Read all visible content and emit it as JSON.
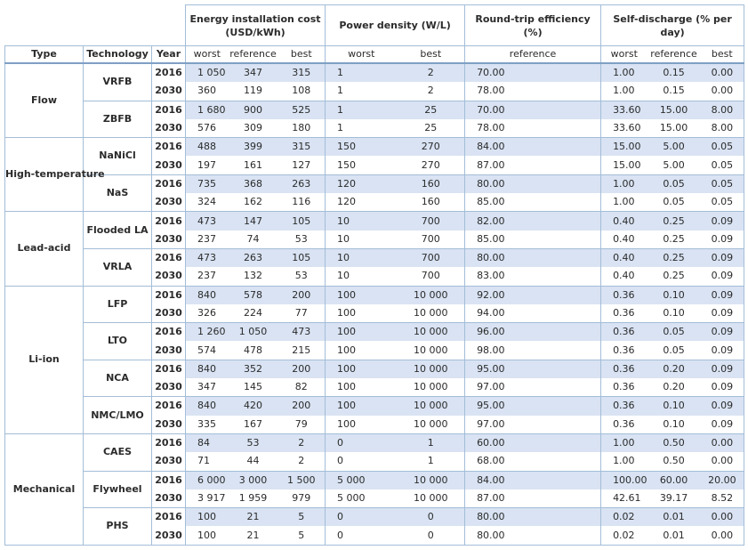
{
  "header": {
    "groups": [
      "Energy installation cost (USD/kWh)",
      "Power density (W/L)",
      "Round-trip efficiency (%)",
      "Self-discharge (% per day)"
    ],
    "columns": {
      "type": "Type",
      "technology": "Technology",
      "year": "Year",
      "cost_worst": "worst",
      "cost_reference": "reference",
      "cost_best": "best",
      "power_worst": "worst",
      "power_best": "best",
      "efficiency_reference": "reference",
      "sd_worst": "worst",
      "sd_reference": "reference",
      "sd_best": "best"
    }
  },
  "types": [
    {
      "name": "Flow",
      "technologies": [
        {
          "name": "VRFB",
          "rows": [
            {
              "year": "2016",
              "values": [
                "1 050",
                "347",
                "315",
                "1",
                "2",
                "70.00",
                "1.00",
                "0.15",
                "0.00"
              ]
            },
            {
              "year": "2030",
              "values": [
                "360",
                "119",
                "108",
                "1",
                "2",
                "78.00",
                "1.00",
                "0.15",
                "0.00"
              ]
            }
          ]
        },
        {
          "name": "ZBFB",
          "rows": [
            {
              "year": "2016",
              "values": [
                "1 680",
                "900",
                "525",
                "1",
                "25",
                "70.00",
                "33.60",
                "15.00",
                "8.00"
              ]
            },
            {
              "year": "2030",
              "values": [
                "576",
                "309",
                "180",
                "1",
                "25",
                "78.00",
                "33.60",
                "15.00",
                "8.00"
              ]
            }
          ]
        }
      ]
    },
    {
      "name": "High-temperature",
      "technologies": [
        {
          "name": "NaNiCl",
          "rows": [
            {
              "year": "2016",
              "values": [
                "488",
                "399",
                "315",
                "150",
                "270",
                "84.00",
                "15.00",
                "5.00",
                "0.05"
              ]
            },
            {
              "year": "2030",
              "values": [
                "197",
                "161",
                "127",
                "150",
                "270",
                "87.00",
                "15.00",
                "5.00",
                "0.05"
              ]
            }
          ]
        },
        {
          "name": "NaS",
          "rows": [
            {
              "year": "2016",
              "values": [
                "735",
                "368",
                "263",
                "120",
                "160",
                "80.00",
                "1.00",
                "0.05",
                "0.05"
              ]
            },
            {
              "year": "2030",
              "values": [
                "324",
                "162",
                "116",
                "120",
                "160",
                "85.00",
                "1.00",
                "0.05",
                "0.05"
              ]
            }
          ]
        }
      ]
    },
    {
      "name": "Lead-acid",
      "technologies": [
        {
          "name": "Flooded LA",
          "rows": [
            {
              "year": "2016",
              "values": [
                "473",
                "147",
                "105",
                "10",
                "700",
                "82.00",
                "0.40",
                "0.25",
                "0.09"
              ]
            },
            {
              "year": "2030",
              "values": [
                "237",
                "74",
                "53",
                "10",
                "700",
                "85.00",
                "0.40",
                "0.25",
                "0.09"
              ]
            }
          ]
        },
        {
          "name": "VRLA",
          "rows": [
            {
              "year": "2016",
              "values": [
                "473",
                "263",
                "105",
                "10",
                "700",
                "80.00",
                "0.40",
                "0.25",
                "0.09"
              ]
            },
            {
              "year": "2030",
              "values": [
                "237",
                "132",
                "53",
                "10",
                "700",
                "83.00",
                "0.40",
                "0.25",
                "0.09"
              ]
            }
          ]
        }
      ]
    },
    {
      "name": "Li-ion",
      "technologies": [
        {
          "name": "LFP",
          "rows": [
            {
              "year": "2016",
              "values": [
                "840",
                "578",
                "200",
                "100",
                "10 000",
                "92.00",
                "0.36",
                "0.10",
                "0.09"
              ]
            },
            {
              "year": "2030",
              "values": [
                "326",
                "224",
                "77",
                "100",
                "10 000",
                "94.00",
                "0.36",
                "0.10",
                "0.09"
              ]
            }
          ]
        },
        {
          "name": "LTO",
          "rows": [
            {
              "year": "2016",
              "values": [
                "1 260",
                "1 050",
                "473",
                "100",
                "10 000",
                "96.00",
                "0.36",
                "0.05",
                "0.09"
              ]
            },
            {
              "year": "2030",
              "values": [
                "574",
                "478",
                "215",
                "100",
                "10 000",
                "98.00",
                "0.36",
                "0.05",
                "0.09"
              ]
            }
          ]
        },
        {
          "name": "NCA",
          "rows": [
            {
              "year": "2016",
              "values": [
                "840",
                "352",
                "200",
                "100",
                "10 000",
                "95.00",
                "0.36",
                "0.20",
                "0.09"
              ]
            },
            {
              "year": "2030",
              "values": [
                "347",
                "145",
                "82",
                "100",
                "10 000",
                "97.00",
                "0.36",
                "0.20",
                "0.09"
              ]
            }
          ]
        },
        {
          "name": "NMC/LMO",
          "rows": [
            {
              "year": "2016",
              "values": [
                "840",
                "420",
                "200",
                "100",
                "10 000",
                "95.00",
                "0.36",
                "0.10",
                "0.09"
              ]
            },
            {
              "year": "2030",
              "values": [
                "335",
                "167",
                "79",
                "100",
                "10 000",
                "97.00",
                "0.36",
                "0.10",
                "0.09"
              ]
            }
          ]
        }
      ]
    },
    {
      "name": "Mechanical",
      "technologies": [
        {
          "name": "CAES",
          "rows": [
            {
              "year": "2016",
              "values": [
                "84",
                "53",
                "2",
                "0",
                "1",
                "60.00",
                "1.00",
                "0.50",
                "0.00"
              ]
            },
            {
              "year": "2030",
              "values": [
                "71",
                "44",
                "2",
                "0",
                "1",
                "68.00",
                "1.00",
                "0.50",
                "0.00"
              ]
            }
          ]
        },
        {
          "name": "Flywheel",
          "rows": [
            {
              "year": "2016",
              "values": [
                "6 000",
                "3 000",
                "1 500",
                "5 000",
                "10 000",
                "84.00",
                "100.00",
                "60.00",
                "20.00"
              ]
            },
            {
              "year": "2030",
              "values": [
                "3 917",
                "1 959",
                "979",
                "5 000",
                "10 000",
                "87.00",
                "42.61",
                "39.17",
                "8.52"
              ]
            }
          ]
        },
        {
          "name": "PHS",
          "rows": [
            {
              "year": "2016",
              "values": [
                "100",
                "21",
                "5",
                "0",
                "0",
                "80.00",
                "0.02",
                "0.01",
                "0.00"
              ]
            },
            {
              "year": "2030",
              "values": [
                "100",
                "21",
                "5",
                "0",
                "0",
                "80.00",
                "0.02",
                "0.01",
                "0.00"
              ]
            }
          ]
        }
      ]
    }
  ]
}
